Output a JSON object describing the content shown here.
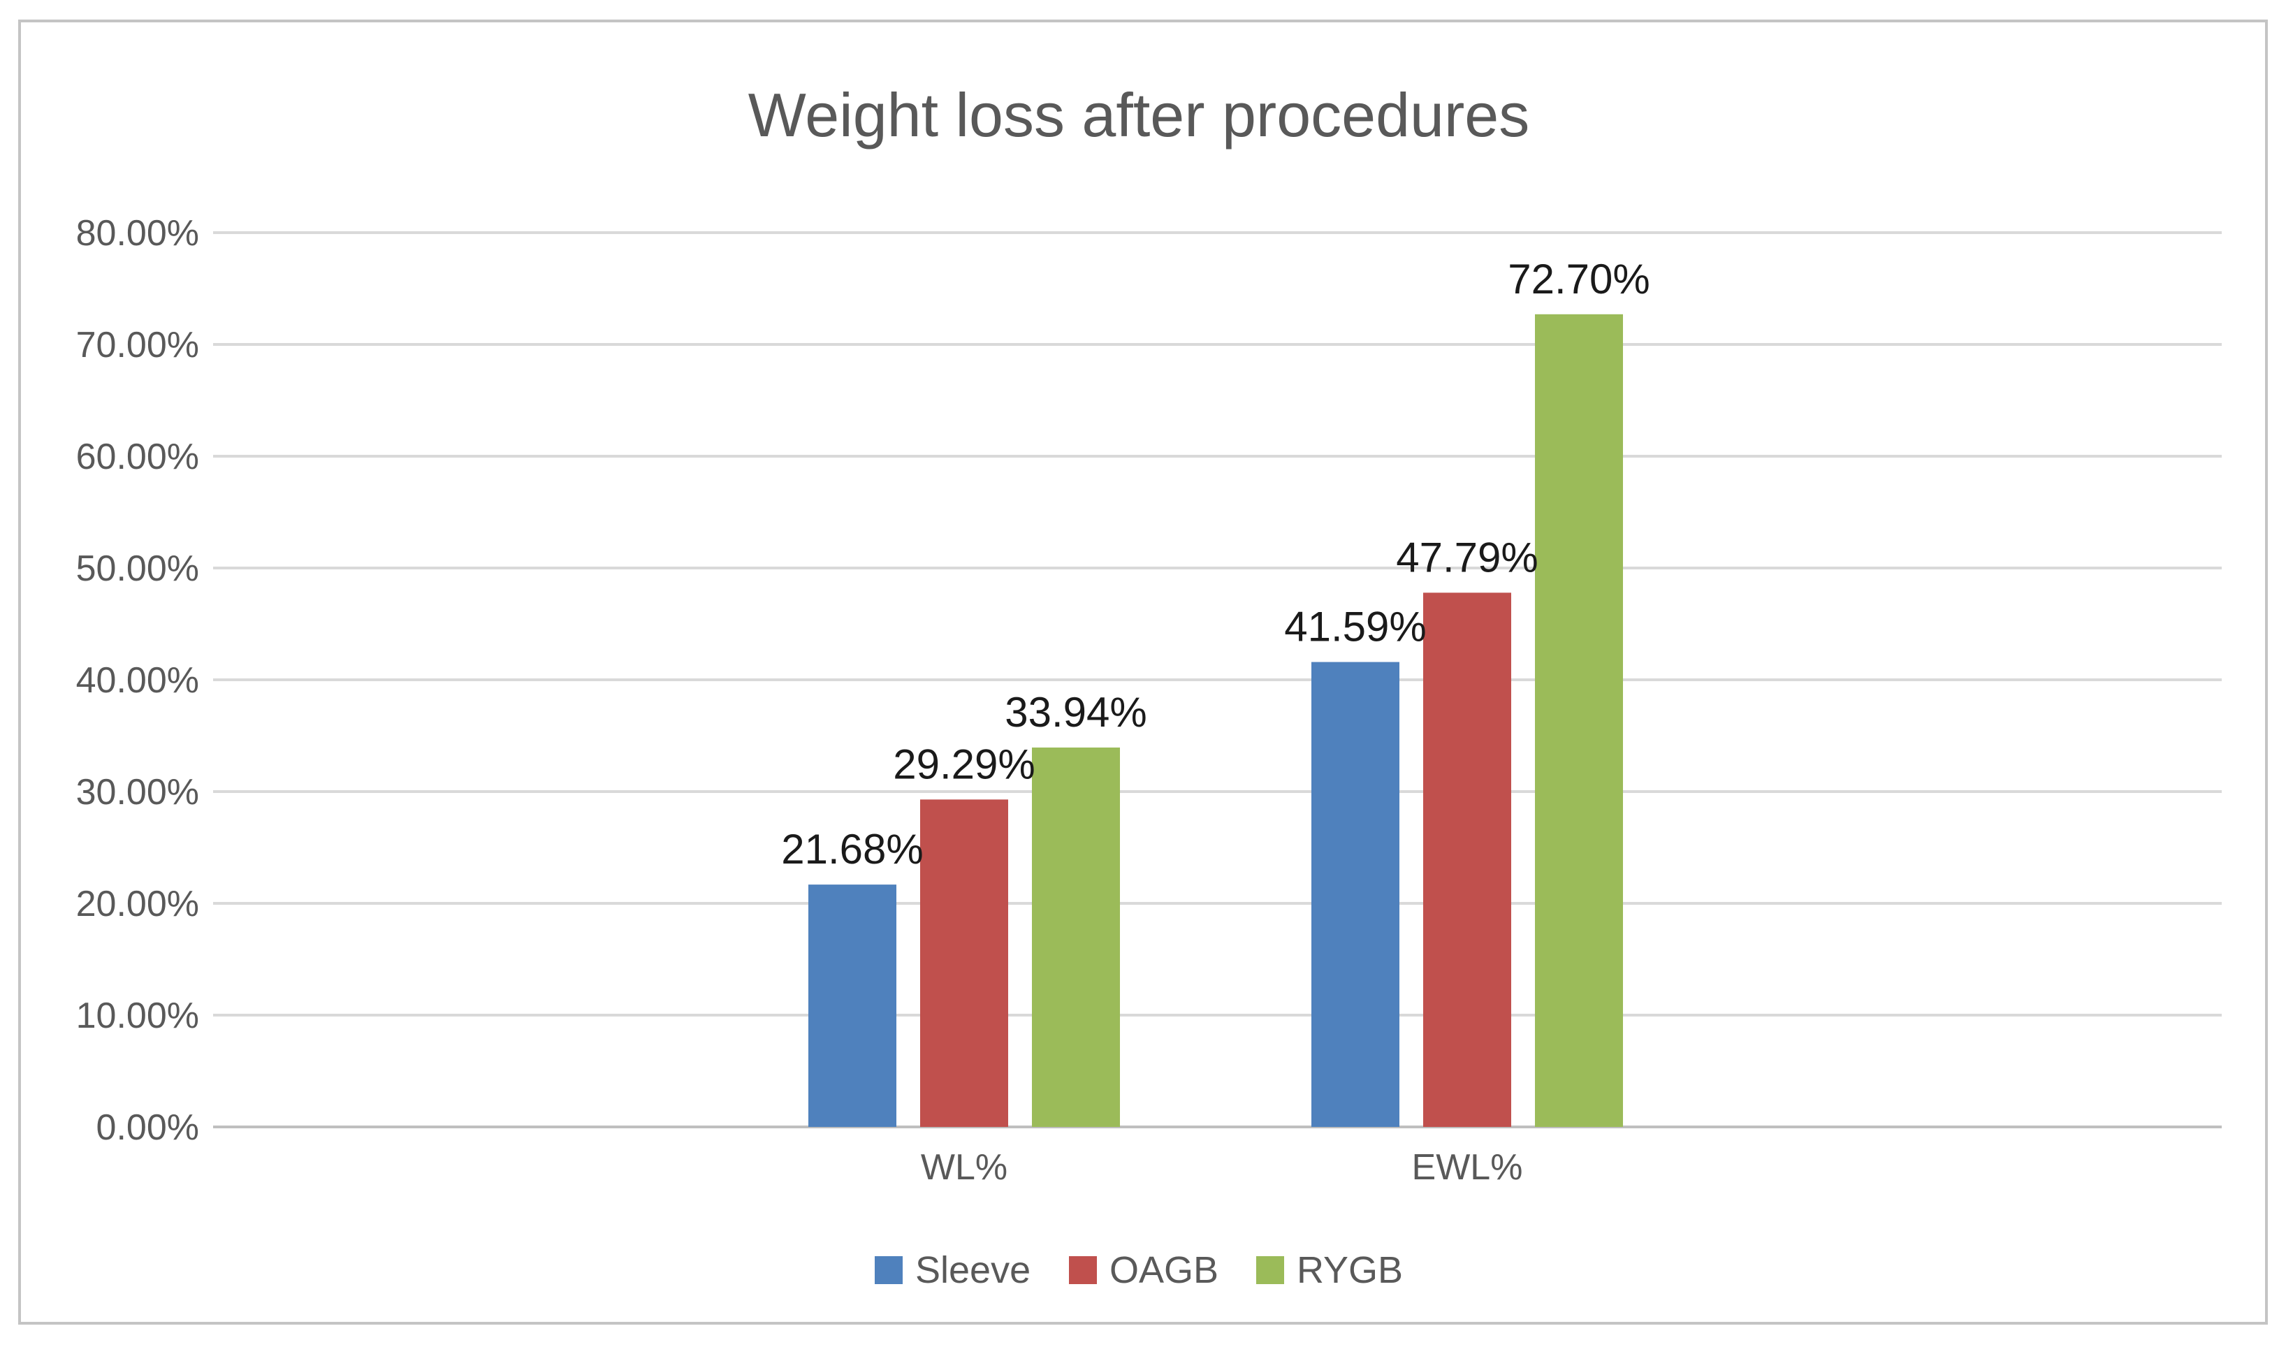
{
  "chart_data": {
    "type": "bar",
    "title": "Weight loss after procedures",
    "xlabel": "",
    "ylabel": "",
    "categories": [
      "WL%",
      "EWL%"
    ],
    "series": [
      {
        "name": "Sleeve",
        "color": "#4f81bd",
        "values": [
          21.68,
          41.59
        ],
        "labels": [
          "21.68%",
          "41.59%"
        ]
      },
      {
        "name": "OAGB",
        "color": "#c0504d",
        "values": [
          29.29,
          47.79
        ],
        "labels": [
          "29.29%",
          "47.79%"
        ]
      },
      {
        "name": "RYGB",
        "color": "#9bbb59",
        "values": [
          33.94,
          72.7
        ],
        "labels": [
          "33.94%",
          "72.70%"
        ]
      }
    ],
    "ylim": [
      0,
      80
    ],
    "yticks": [
      0,
      10,
      20,
      30,
      40,
      50,
      60,
      70,
      80
    ],
    "ytick_labels": [
      "0.00%",
      "10.00%",
      "20.00%",
      "30.00%",
      "40.00%",
      "50.00%",
      "60.00%",
      "70.00%",
      "80.00%"
    ],
    "grid": true,
    "legend_position": "bottom-center"
  }
}
